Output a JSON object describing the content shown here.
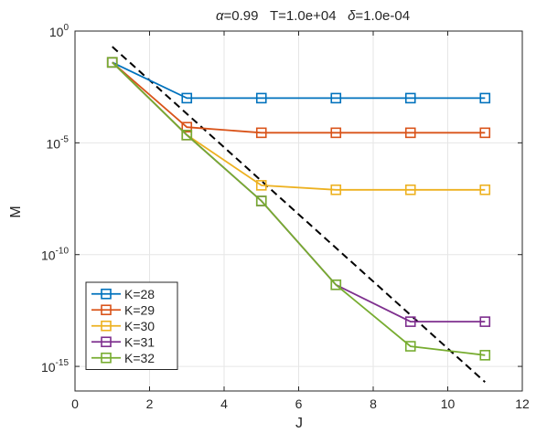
{
  "chart_data": {
    "type": "line",
    "title_parts": [
      {
        "symbol": "α",
        "text": "=0.99"
      },
      {
        "symbol": "",
        "text": "T=1.0e+04"
      },
      {
        "symbol": "δ",
        "text": "=1.0e-04"
      }
    ],
    "xlabel": "J",
    "ylabel": "M",
    "xlim": [
      0,
      12
    ],
    "ylim_log10": [
      -16.1,
      0
    ],
    "y_scale": "log",
    "x_ticks": [
      "0",
      "2",
      "4",
      "6",
      "8",
      "10",
      "12"
    ],
    "y_ticks": [
      {
        "base": "10",
        "exp": "0",
        "log10": 0
      },
      {
        "base": "10",
        "exp": "-5",
        "log10": -5
      },
      {
        "base": "10",
        "exp": "-10",
        "log10": -10
      },
      {
        "base": "10",
        "exp": "-15",
        "log10": -15
      }
    ],
    "grid": true,
    "legend_position": "bottom-left",
    "marker": "square",
    "series": [
      {
        "name": "K=28",
        "color": "#0072BD",
        "x": [
          1,
          3,
          5,
          7,
          9,
          11
        ],
        "log10_y": [
          -1.4,
          -3.0,
          -3.0,
          -3.0,
          -3.0,
          -3.0
        ]
      },
      {
        "name": "K=29",
        "color": "#D95319",
        "x": [
          1,
          3,
          5,
          7,
          9,
          11
        ],
        "log10_y": [
          -1.4,
          -4.3,
          -4.55,
          -4.55,
          -4.55,
          -4.55
        ]
      },
      {
        "name": "K=30",
        "color": "#EDB120",
        "x": [
          1,
          3,
          5,
          7,
          9,
          11
        ],
        "log10_y": [
          -1.4,
          -4.65,
          -6.9,
          -7.1,
          -7.1,
          -7.1
        ]
      },
      {
        "name": "K=31",
        "color": "#7E2F8E",
        "x": [
          1,
          3,
          5,
          7,
          9,
          11
        ],
        "log10_y": [
          -1.4,
          -4.65,
          -7.6,
          -11.35,
          -13.0,
          -13.0
        ]
      },
      {
        "name": "K=32",
        "color": "#77AC30",
        "x": [
          1,
          3,
          5,
          7,
          9,
          11
        ],
        "log10_y": [
          -1.4,
          -4.65,
          -7.6,
          -11.35,
          -14.1,
          -14.5
        ]
      }
    ],
    "reference_line": {
      "style": "dashed",
      "color": "#000000",
      "x": [
        1,
        11
      ],
      "log10_y": [
        -0.7,
        -15.7
      ]
    }
  }
}
